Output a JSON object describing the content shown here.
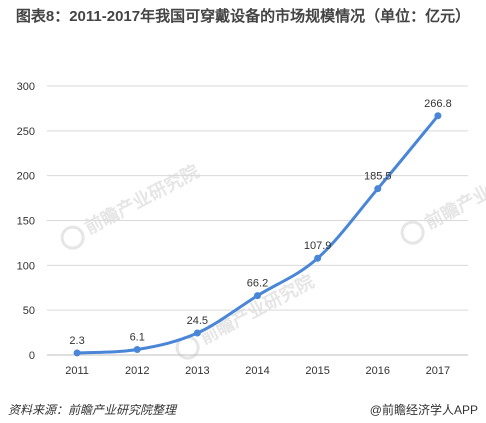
{
  "title": "图表8：2011-2017年我国可穿戴设备的市场规模情况（单位：亿元）",
  "footer": {
    "source": "资料来源：前瞻产业研究院整理",
    "credit": "@前瞻经济学人APP"
  },
  "watermark": "前瞻产业研究院",
  "colors": {
    "line": "#4a86d8",
    "grid": "#d9d9d9",
    "axis_text": "#333333"
  },
  "chart_data": {
    "type": "line",
    "x": [
      "2011",
      "2012",
      "2013",
      "2014",
      "2015",
      "2016",
      "2017"
    ],
    "series": [
      {
        "values": [
          2.3,
          6.1,
          24.5,
          66.2,
          107.9,
          185.5,
          266.8
        ],
        "labels": [
          "2.3",
          "6.1",
          "24.5",
          "66.2",
          "107.9",
          "185.5",
          "266.8"
        ]
      }
    ],
    "yticks": [
      0,
      50,
      100,
      150,
      200,
      250,
      300
    ],
    "ylim": [
      0,
      300
    ],
    "grid": "horizontal",
    "legend": "none"
  }
}
